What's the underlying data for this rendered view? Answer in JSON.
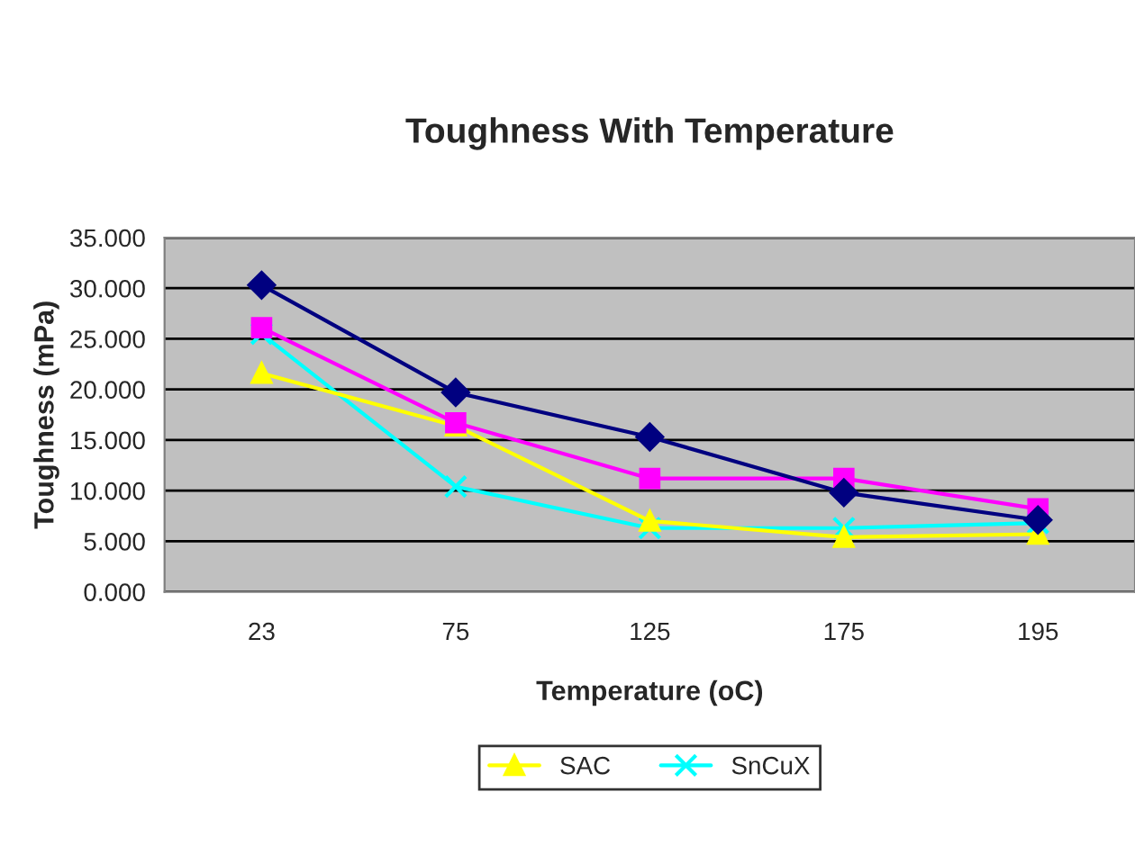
{
  "chart_data": {
    "type": "line",
    "title": "Toughness With Temperature",
    "xlabel": "Temperature (oC)",
    "ylabel": "Toughness (mPa)",
    "categories": [
      "23",
      "75",
      "125",
      "175",
      "195"
    ],
    "series": [
      {
        "color": "#000080",
        "marker": "diamond",
        "values": [
          30.3,
          19.7,
          15.3,
          9.8,
          7.1
        ]
      },
      {
        "color": "#ff00ff",
        "marker": "square",
        "values": [
          26.1,
          16.7,
          11.2,
          11.2,
          8.2
        ]
      },
      {
        "name": "SAC",
        "color": "#ffff00",
        "marker": "triangle",
        "values": [
          21.6,
          16.4,
          7.0,
          5.4,
          5.7
        ]
      },
      {
        "name": "SnCuX",
        "color": "#00ffff",
        "marker": "cross",
        "values": [
          25.5,
          10.4,
          6.3,
          6.3,
          6.8
        ]
      }
    ],
    "ylim": [
      0,
      35
    ],
    "yticks": [
      {
        "value": 0,
        "label": "0.000"
      },
      {
        "value": 5,
        "label": "5.000"
      },
      {
        "value": 10,
        "label": "10.000"
      },
      {
        "value": 15,
        "label": "15.000"
      },
      {
        "value": 20,
        "label": "20.000"
      },
      {
        "value": 25,
        "label": "25.000"
      },
      {
        "value": 30,
        "label": "30.000"
      },
      {
        "value": 35,
        "label": "35.000"
      }
    ],
    "grid": "y",
    "legend": "bottom",
    "line_style": "solid"
  }
}
